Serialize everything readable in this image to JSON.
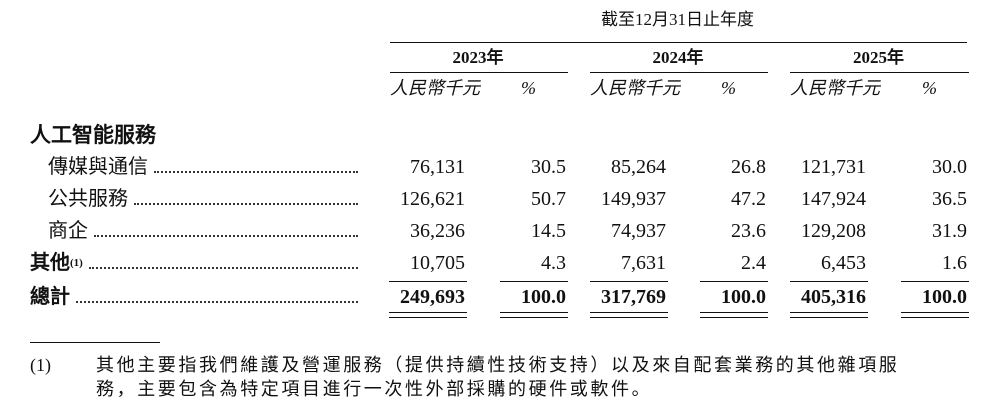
{
  "header": {
    "period": "截至12月31日止年度",
    "columns": [
      {
        "year": "2023年",
        "units": [
          "人民幣千元",
          "%"
        ]
      },
      {
        "year": "2024年",
        "units": [
          "人民幣千元",
          "%"
        ]
      },
      {
        "year": "2025年",
        "units": [
          "人民幣千元",
          "%"
        ]
      }
    ]
  },
  "table": {
    "section": "人工智能服務",
    "rows": [
      {
        "label": "傳媒與通信",
        "values": [
          "76,131",
          "30.5",
          "85,264",
          "26.8",
          "121,731",
          "30.0"
        ]
      },
      {
        "label": "公共服務",
        "values": [
          "126,621",
          "50.7",
          "149,937",
          "47.2",
          "147,924",
          "36.5"
        ]
      },
      {
        "label": "商企",
        "values": [
          "36,236",
          "14.5",
          "74,937",
          "23.6",
          "129,208",
          "31.9"
        ]
      },
      {
        "label": "其他",
        "note": "(1)",
        "values": [
          "10,705",
          "4.3",
          "7,631",
          "2.4",
          "6,453",
          "1.6"
        ]
      }
    ],
    "total": {
      "label": "總計",
      "values": [
        "249,693",
        "100.0",
        "317,769",
        "100.0",
        "405,316",
        "100.0"
      ]
    }
  },
  "footnote": {
    "marker": "(1)",
    "lines": [
      "其他主要指我們維護及營運服務（提供持續性技術支持）以及來自配套業務的其他雜項服",
      "務，主要包含為特定項目進行一次性外部採購的硬件或軟件。"
    ]
  }
}
